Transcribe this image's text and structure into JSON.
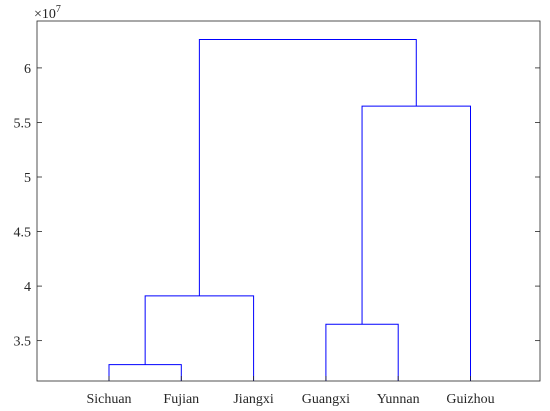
{
  "chart_data": {
    "type": "dendrogram",
    "leaves": [
      "Sichuan",
      "Fujian",
      "Jiangxi",
      "Guangxi",
      "Yunnan",
      "Guizhou"
    ],
    "merges": [
      {
        "left": "Sichuan",
        "right": "Fujian",
        "height": 32800000
      },
      {
        "left": "Guangxi",
        "right": "Yunnan",
        "height": 36500000
      },
      {
        "left": [
          "Sichuan",
          "Fujian"
        ],
        "right": "Jiangxi",
        "height": 39100000
      },
      {
        "left": [
          "Guangxi",
          "Yunnan"
        ],
        "right": "Guizhou",
        "height": 56500000
      },
      {
        "left": [
          "Sichuan",
          "Fujian",
          "Jiangxi"
        ],
        "right": [
          "Guangxi",
          "Yunnan",
          "Guizhou"
        ],
        "height": 62600000
      }
    ],
    "leaf_height": 31300000,
    "ylim": [
      31300000,
      64300000
    ],
    "yticks": [
      35000000,
      40000000,
      45000000,
      50000000,
      55000000,
      60000000
    ],
    "ytick_labels": [
      "3.5",
      "4",
      "4.5",
      "5",
      "5.5",
      "6"
    ],
    "y_exponent": {
      "base": "×10",
      "power": "7"
    },
    "line_color": "#0000ff",
    "axis_color": "#262626",
    "grid": false,
    "title": "",
    "xlabel": "",
    "ylabel": ""
  }
}
